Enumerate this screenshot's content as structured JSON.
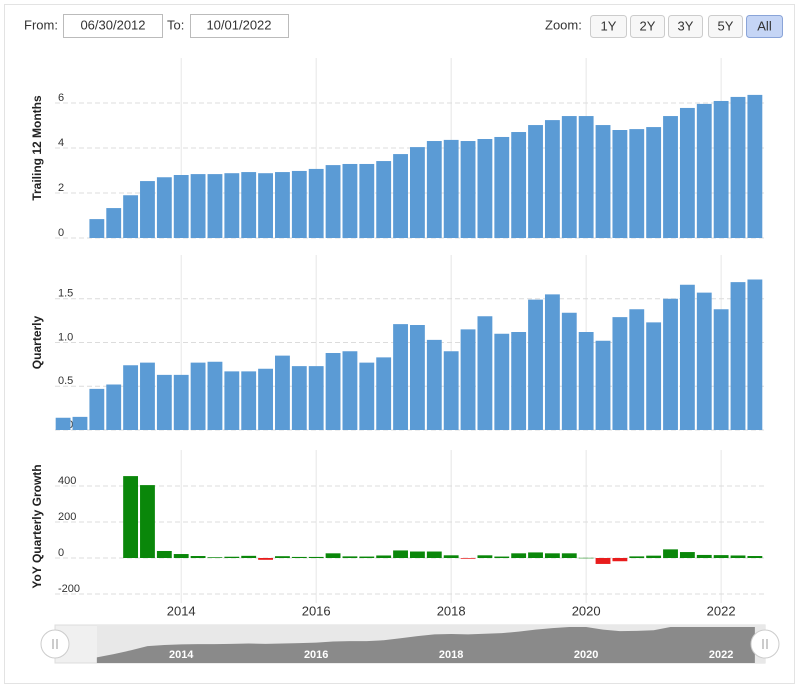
{
  "controls": {
    "from_label": "From:",
    "from": "06/30/2012",
    "to_label": "To:",
    "to": "10/01/2022",
    "zoom_label": "Zoom:",
    "zoom_buttons": [
      "1Y",
      "2Y",
      "3Y",
      "5Y",
      "All"
    ],
    "active_zoom_index": 4
  },
  "chart_data": [
    {
      "type": "bar",
      "y_label": "Trailing 12 Months",
      "color": "#5b9bd5",
      "grid": true,
      "x": [
        2012.25,
        2012.5,
        2012.75,
        2013,
        2013.25,
        2013.5,
        2013.75,
        2014,
        2014.25,
        2014.5,
        2014.75,
        2015,
        2015.25,
        2015.5,
        2015.75,
        2016,
        2016.25,
        2016.5,
        2016.75,
        2017,
        2017.25,
        2017.5,
        2017.75,
        2018,
        2018.25,
        2018.5,
        2018.75,
        2019,
        2019.25,
        2019.5,
        2019.75,
        2020,
        2020.25,
        2020.5,
        2020.75,
        2021,
        2021.25,
        2021.5,
        2021.75,
        2022,
        2022.25,
        2022.5
      ],
      "values": [
        null,
        null,
        0.84,
        1.33,
        1.9,
        2.53,
        2.7,
        2.8,
        2.84,
        2.84,
        2.88,
        2.93,
        2.88,
        2.93,
        2.98,
        3.07,
        3.24,
        3.29,
        3.29,
        3.42,
        3.73,
        4.04,
        4.31,
        4.36,
        4.31,
        4.4,
        4.49,
        4.71,
        5.02,
        5.24,
        5.42,
        5.42,
        5.02,
        4.8,
        4.84,
        4.93,
        5.42,
        5.78,
        5.96,
        6.09,
        6.27,
        6.36
      ],
      "xlim": [
        2012.13,
        2022.65
      ],
      "xticks": [
        2014,
        2016,
        2018,
        2020,
        2022
      ],
      "ylim": [
        0,
        8
      ],
      "yticks": [
        0,
        2,
        4,
        6
      ]
    },
    {
      "type": "bar",
      "y_label": "Quarterly",
      "color": "#5b9bd5",
      "grid": true,
      "x": [
        2012.25,
        2012.5,
        2012.75,
        2013,
        2013.25,
        2013.5,
        2013.75,
        2014,
        2014.25,
        2014.5,
        2014.75,
        2015,
        2015.25,
        2015.5,
        2015.75,
        2016,
        2016.25,
        2016.5,
        2016.75,
        2017,
        2017.25,
        2017.5,
        2017.75,
        2018,
        2018.25,
        2018.5,
        2018.75,
        2019,
        2019.25,
        2019.5,
        2019.75,
        2020,
        2020.25,
        2020.5,
        2020.75,
        2021,
        2021.25,
        2021.5,
        2021.75,
        2022,
        2022.25,
        2022.5
      ],
      "values": [
        0.14,
        0.15,
        0.47,
        0.52,
        0.74,
        0.77,
        0.63,
        0.63,
        0.77,
        0.78,
        0.67,
        0.67,
        0.7,
        0.85,
        0.73,
        0.73,
        0.88,
        0.9,
        0.77,
        0.83,
        1.21,
        1.2,
        1.03,
        0.9,
        1.15,
        1.3,
        1.1,
        1.12,
        1.49,
        1.55,
        1.34,
        1.12,
        1.02,
        1.29,
        1.38,
        1.23,
        1.5,
        1.66,
        1.57,
        1.38,
        1.69,
        1.72
      ],
      "xlim": [
        2012.13,
        2022.65
      ],
      "xticks": [
        2014,
        2016,
        2018,
        2020,
        2022
      ],
      "ylim": [
        0,
        2
      ],
      "yticks": [
        {
          "value": 0,
          "label": "0.0"
        },
        0.5,
        {
          "value": 1,
          "label": "1.0"
        },
        1.5
      ]
    },
    {
      "type": "bar",
      "y_label": "YoY Quarterly Growth",
      "color": "#0a870a",
      "negative_color": "#e81c1c",
      "grid": true,
      "x": [
        2012.25,
        2012.5,
        2012.75,
        2013,
        2013.25,
        2013.5,
        2013.75,
        2014,
        2014.25,
        2014.5,
        2014.75,
        2015,
        2015.25,
        2015.5,
        2015.75,
        2016,
        2016.25,
        2016.5,
        2016.75,
        2017,
        2017.25,
        2017.5,
        2017.75,
        2018,
        2018.25,
        2018.5,
        2018.75,
        2019,
        2019.25,
        2019.5,
        2019.75,
        2020,
        2020.25,
        2020.5,
        2020.75,
        2021,
        2021.25,
        2021.5,
        2021.75,
        2022,
        2022.25,
        2022.5
      ],
      "values": [
        null,
        null,
        null,
        null,
        455,
        405,
        39,
        22,
        11,
        4,
        7,
        12,
        -10,
        10,
        6,
        6,
        26,
        9,
        8,
        14,
        42,
        36,
        36,
        15,
        -4,
        15,
        8,
        26,
        31,
        26,
        26,
        1,
        -33,
        -18,
        9,
        13,
        48,
        33,
        17,
        16,
        14,
        11
      ],
      "xlim": [
        2012.13,
        2022.65
      ],
      "xticks": [
        2014,
        2016,
        2018,
        2020,
        2022
      ],
      "ylim": [
        -250,
        600
      ],
      "yticks": [
        -200,
        0,
        200,
        400
      ]
    }
  ]
}
